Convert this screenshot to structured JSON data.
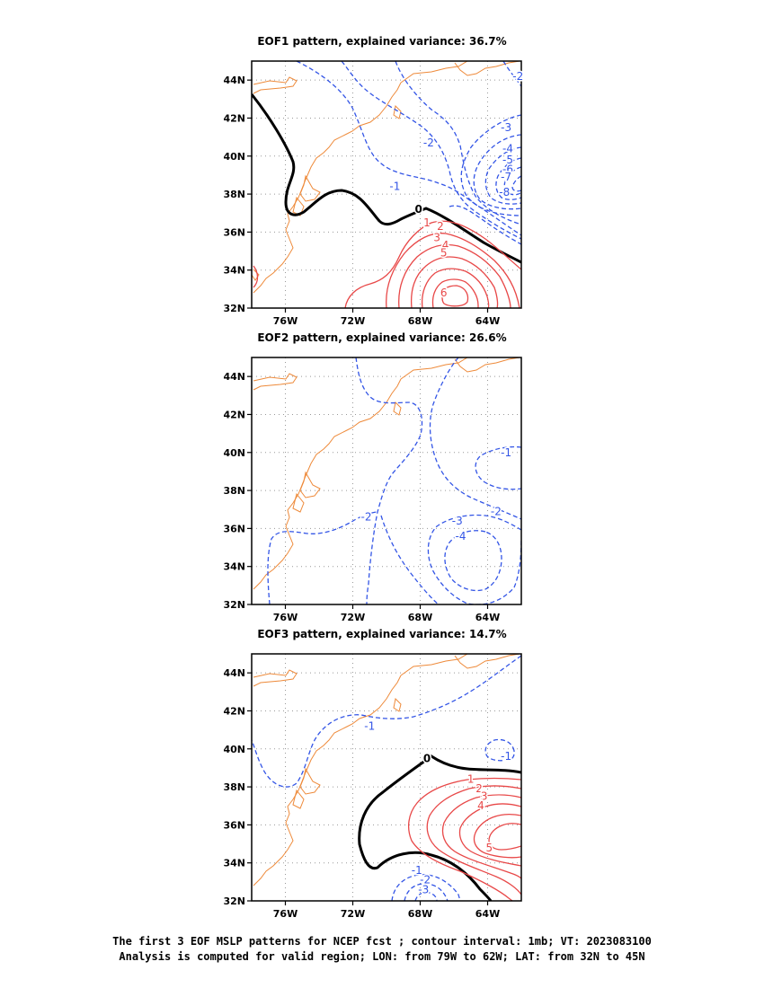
{
  "colors": {
    "negative": "#3355e6",
    "positive": "#e84848",
    "zero": "#000000",
    "coastline": "#ee8a3a",
    "grid": "#999999"
  },
  "caption": {
    "line1": "The first 3 EOF MSLP patterns for NCEP fcst ; contour interval: 1mb; VT: 2023083100",
    "line2": "Analysis is computed for valid region; LON: from 79W to 62W; LAT: from 32N to 45N"
  },
  "chart_data": [
    {
      "type": "contour",
      "title": "EOF1 pattern, explained variance: 36.7%",
      "explained_variance_pct": 36.7,
      "xlim": [
        -78,
        -62
      ],
      "ylim": [
        32,
        45
      ],
      "xticks": [
        {
          "value": -76,
          "label": "76W"
        },
        {
          "value": -72,
          "label": "72W"
        },
        {
          "value": -68,
          "label": "68W"
        },
        {
          "value": -64,
          "label": "64W"
        }
      ],
      "yticks": [
        {
          "value": 32,
          "label": "32N"
        },
        {
          "value": 34,
          "label": "34N"
        },
        {
          "value": 36,
          "label": "36N"
        },
        {
          "value": 38,
          "label": "38N"
        },
        {
          "value": 40,
          "label": "40N"
        },
        {
          "value": 42,
          "label": "42N"
        },
        {
          "value": 44,
          "label": "44N"
        }
      ],
      "grid": true,
      "contour_interval_mb": 1,
      "contour_labels": [
        {
          "text": "-2",
          "lon": -62.2,
          "lat": 44.2,
          "sign": "neg"
        },
        {
          "text": "-3",
          "lon": -62.9,
          "lat": 41.5,
          "sign": "neg"
        },
        {
          "text": "-2",
          "lon": -67.5,
          "lat": 40.7,
          "sign": "neg"
        },
        {
          "text": "-4",
          "lon": -62.8,
          "lat": 40.4,
          "sign": "neg"
        },
        {
          "text": "-5",
          "lon": -62.8,
          "lat": 39.8,
          "sign": "neg"
        },
        {
          "text": "-6",
          "lon": -62.8,
          "lat": 39.3,
          "sign": "neg"
        },
        {
          "text": "-7",
          "lon": -62.9,
          "lat": 38.9,
          "sign": "neg"
        },
        {
          "text": "-1",
          "lon": -69.5,
          "lat": 38.4,
          "sign": "neg"
        },
        {
          "text": "-8",
          "lon": -63.0,
          "lat": 38.1,
          "sign": "neg"
        },
        {
          "text": "0",
          "lon": -68.1,
          "lat": 37.2,
          "sign": "zero"
        },
        {
          "text": "1",
          "lon": -67.6,
          "lat": 36.5,
          "sign": "pos"
        },
        {
          "text": "2",
          "lon": -66.8,
          "lat": 36.3,
          "sign": "pos"
        },
        {
          "text": "3",
          "lon": -67.0,
          "lat": 35.7,
          "sign": "pos"
        },
        {
          "text": "4",
          "lon": -66.5,
          "lat": 35.3,
          "sign": "pos"
        },
        {
          "text": "5",
          "lon": -66.6,
          "lat": 34.9,
          "sign": "pos"
        },
        {
          "text": "6",
          "lon": -66.6,
          "lat": 32.8,
          "sign": "pos"
        }
      ]
    },
    {
      "type": "contour",
      "title": "EOF2 pattern, explained variance: 26.6%",
      "explained_variance_pct": 26.6,
      "xlim": [
        -78,
        -62
      ],
      "ylim": [
        32,
        45
      ],
      "xticks": [
        {
          "value": -76,
          "label": "76W"
        },
        {
          "value": -72,
          "label": "72W"
        },
        {
          "value": -68,
          "label": "68W"
        },
        {
          "value": -64,
          "label": "64W"
        }
      ],
      "yticks": [
        {
          "value": 32,
          "label": "32N"
        },
        {
          "value": 34,
          "label": "34N"
        },
        {
          "value": 36,
          "label": "36N"
        },
        {
          "value": 38,
          "label": "38N"
        },
        {
          "value": 40,
          "label": "40N"
        },
        {
          "value": 42,
          "label": "42N"
        },
        {
          "value": 44,
          "label": "44N"
        }
      ],
      "grid": true,
      "contour_interval_mb": 1,
      "contour_labels": [
        {
          "text": "-1",
          "lon": -62.9,
          "lat": 40.0,
          "sign": "neg"
        },
        {
          "text": "-2",
          "lon": -71.2,
          "lat": 36.6,
          "sign": "neg"
        },
        {
          "text": "-2",
          "lon": -63.5,
          "lat": 36.9,
          "sign": "neg"
        },
        {
          "text": "-3",
          "lon": -65.8,
          "lat": 36.4,
          "sign": "neg"
        },
        {
          "text": "-4",
          "lon": -65.6,
          "lat": 35.6,
          "sign": "neg"
        }
      ]
    },
    {
      "type": "contour",
      "title": "EOF3 pattern, explained variance: 14.7%",
      "explained_variance_pct": 14.7,
      "xlim": [
        -78,
        -62
      ],
      "ylim": [
        32,
        45
      ],
      "xticks": [
        {
          "value": -76,
          "label": "76W"
        },
        {
          "value": -72,
          "label": "72W"
        },
        {
          "value": -68,
          "label": "68W"
        },
        {
          "value": -64,
          "label": "64W"
        }
      ],
      "yticks": [
        {
          "value": 32,
          "label": "32N"
        },
        {
          "value": 34,
          "label": "34N"
        },
        {
          "value": 36,
          "label": "36N"
        },
        {
          "value": 38,
          "label": "38N"
        },
        {
          "value": 40,
          "label": "40N"
        },
        {
          "value": 42,
          "label": "42N"
        },
        {
          "value": 44,
          "label": "44N"
        }
      ],
      "grid": true,
      "contour_interval_mb": 1,
      "contour_labels": [
        {
          "text": "-1",
          "lon": -71.0,
          "lat": 41.2,
          "sign": "neg"
        },
        {
          "text": "-1",
          "lon": -62.9,
          "lat": 39.6,
          "sign": "neg"
        },
        {
          "text": "0",
          "lon": -67.6,
          "lat": 39.5,
          "sign": "zero"
        },
        {
          "text": "1",
          "lon": -65.0,
          "lat": 38.4,
          "sign": "pos"
        },
        {
          "text": "2",
          "lon": -64.5,
          "lat": 37.9,
          "sign": "pos"
        },
        {
          "text": "3",
          "lon": -64.2,
          "lat": 37.5,
          "sign": "pos"
        },
        {
          "text": "4",
          "lon": -64.4,
          "lat": 37.0,
          "sign": "pos"
        },
        {
          "text": "5",
          "lon": -63.9,
          "lat": 34.8,
          "sign": "pos"
        },
        {
          "text": "-1",
          "lon": -68.2,
          "lat": 33.6,
          "sign": "neg"
        },
        {
          "text": "-2",
          "lon": -67.7,
          "lat": 33.1,
          "sign": "neg"
        },
        {
          "text": "-3",
          "lon": -67.8,
          "lat": 32.6,
          "sign": "neg"
        }
      ]
    }
  ]
}
